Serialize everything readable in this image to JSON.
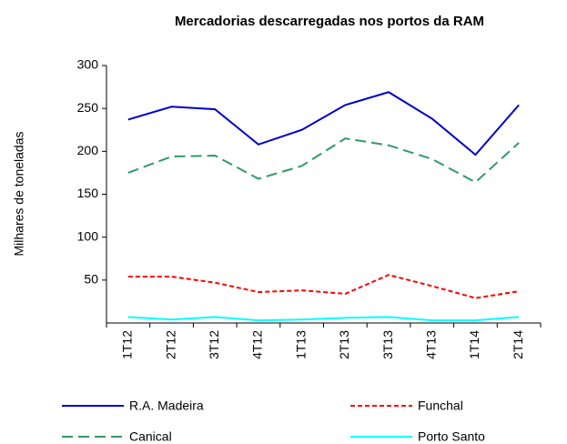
{
  "chart_data": {
    "type": "line",
    "title": "Mercadorias descarregadas nos portos da RAM",
    "y_label": "Milhares de toneladas",
    "categories": [
      "1T12",
      "2T12",
      "3T12",
      "4T12",
      "1T13",
      "2T13",
      "3T13",
      "4T13",
      "1T14",
      "2T14"
    ],
    "series": [
      {
        "name": "R.A. Madeira",
        "color": "#0000cc",
        "style": "solid",
        "values": [
          237,
          252,
          249,
          208,
          225,
          254,
          269,
          238,
          196,
          254
        ]
      },
      {
        "name": "Funchal",
        "color": "#ff0000",
        "style": "dotted",
        "values": [
          54,
          54,
          47,
          36,
          38,
          34,
          56,
          43,
          29,
          37
        ]
      },
      {
        "name": "Canical",
        "color": "#339966",
        "style": "dashed",
        "values": [
          175,
          194,
          195,
          168,
          183,
          215,
          207,
          191,
          164,
          210
        ]
      },
      {
        "name": "Porto Santo",
        "color": "#00ffff",
        "style": "solid",
        "values": [
          7,
          4,
          7,
          3,
          4,
          6,
          7,
          3,
          3,
          7
        ]
      }
    ],
    "ylim": [
      0,
      300
    ],
    "yticks": [
      50,
      100,
      150,
      200,
      250,
      300
    ],
    "grid": false
  }
}
